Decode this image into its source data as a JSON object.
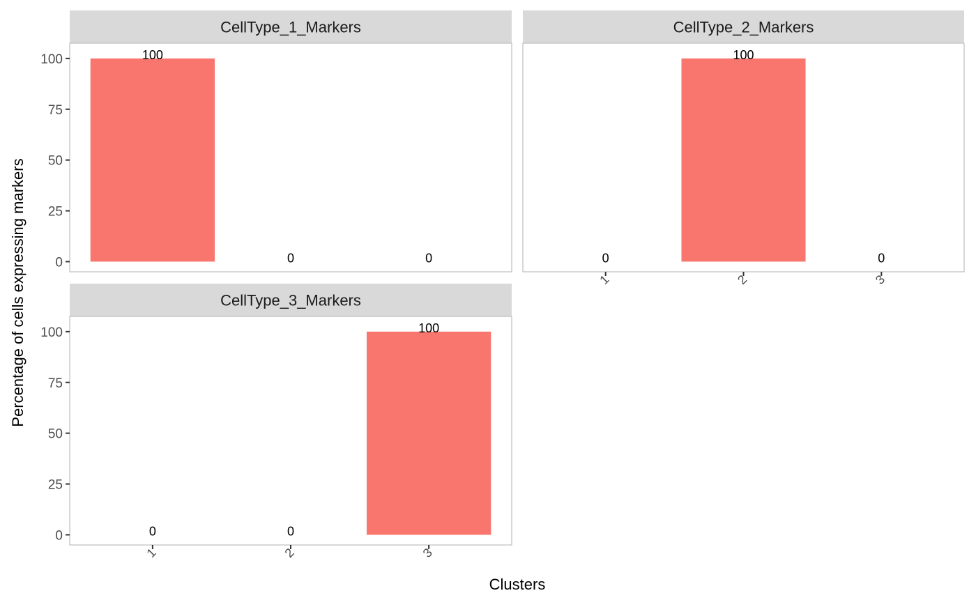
{
  "chart_data": {
    "type": "bar",
    "xlabel": "Clusters",
    "ylabel": "Percentage of cells expressing markers",
    "categories": [
      "1",
      "2",
      "3"
    ],
    "ylim": [
      -5,
      107.5
    ],
    "yticks": [
      0,
      25,
      50,
      75,
      100
    ],
    "ytick_labels": [
      "0",
      "25",
      "50",
      "75",
      "100"
    ],
    "bar_color": "#F8766D",
    "strip_color": "#D9D9D9",
    "grid": false,
    "facets": [
      {
        "title": "CellType_1_Markers",
        "values": [
          100,
          0,
          0
        ],
        "labels": [
          "100",
          "0",
          "0"
        ]
      },
      {
        "title": "CellType_2_Markers",
        "values": [
          0,
          100,
          0
        ],
        "labels": [
          "0",
          "100",
          "0"
        ]
      },
      {
        "title": "CellType_3_Markers",
        "values": [
          0,
          0,
          100
        ],
        "labels": [
          "0",
          "0",
          "100"
        ]
      }
    ]
  }
}
